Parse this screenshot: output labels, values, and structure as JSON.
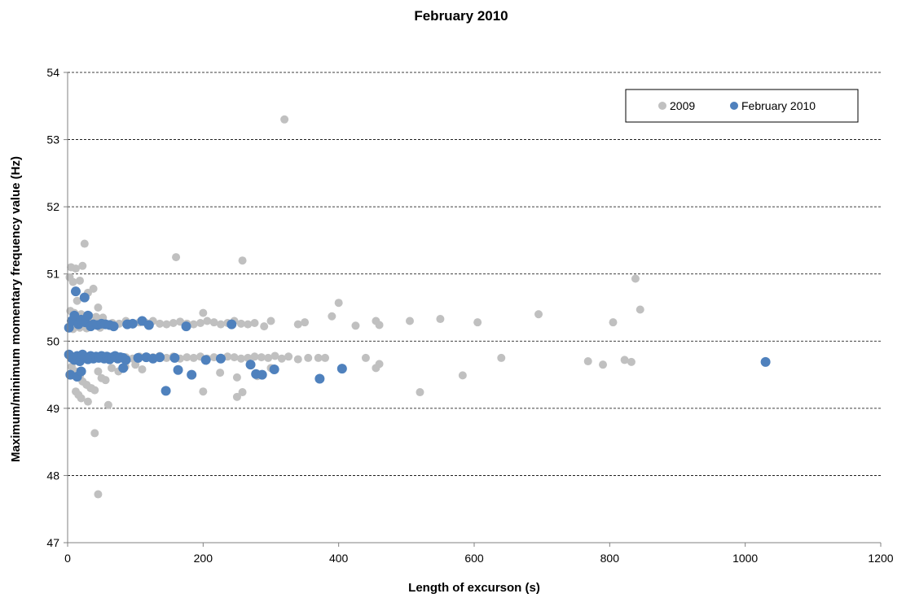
{
  "chart_data": {
    "type": "scatter",
    "title": "February 2010",
    "xlabel": "Length of excurson (s)",
    "ylabel": "Maximum/minimum momentary frequency value (Hz)",
    "xlim": [
      0,
      1200
    ],
    "ylim": [
      47,
      54
    ],
    "x_ticks": [
      "0",
      "200",
      "400",
      "600",
      "800",
      "1000",
      "1200"
    ],
    "y_ticks": [
      "47",
      "48",
      "49",
      "50",
      "51",
      "52",
      "53",
      "54"
    ],
    "grid": "horizontal-dashed",
    "legend_position": "top-right",
    "series": [
      {
        "name": "2009",
        "color": "#c0c0c0",
        "points": [
          [
            320,
            53.3
          ],
          [
            25,
            51.45
          ],
          [
            160,
            51.25
          ],
          [
            258,
            51.2
          ],
          [
            5,
            51.1
          ],
          [
            12,
            51.08
          ],
          [
            22,
            51.12
          ],
          [
            3,
            50.95
          ],
          [
            8,
            50.88
          ],
          [
            18,
            50.9
          ],
          [
            38,
            50.78
          ],
          [
            30,
            50.72
          ],
          [
            45,
            50.5
          ],
          [
            14,
            50.6
          ],
          [
            838,
            50.93
          ],
          [
            845,
            50.47
          ],
          [
            400,
            50.57
          ],
          [
            695,
            50.4
          ],
          [
            390,
            50.37
          ],
          [
            550,
            50.33
          ],
          [
            505,
            50.3
          ],
          [
            605,
            50.28
          ],
          [
            805,
            50.28
          ],
          [
            455,
            50.3
          ],
          [
            425,
            50.23
          ],
          [
            460,
            50.24
          ],
          [
            200,
            50.42
          ],
          [
            300,
            50.3
          ],
          [
            350,
            50.28
          ],
          [
            340,
            50.25
          ],
          [
            290,
            50.22
          ],
          [
            6,
            50.3
          ],
          [
            16,
            50.32
          ],
          [
            26,
            50.28
          ],
          [
            36,
            50.27
          ],
          [
            46,
            50.26
          ],
          [
            56,
            50.25
          ],
          [
            66,
            50.27
          ],
          [
            76,
            50.26
          ],
          [
            86,
            50.3
          ],
          [
            96,
            50.25
          ],
          [
            106,
            50.28
          ],
          [
            116,
            50.27
          ],
          [
            126,
            50.3
          ],
          [
            136,
            50.26
          ],
          [
            146,
            50.25
          ],
          [
            156,
            50.27
          ],
          [
            166,
            50.29
          ],
          [
            176,
            50.26
          ],
          [
            186,
            50.25
          ],
          [
            196,
            50.27
          ],
          [
            206,
            50.3
          ],
          [
            216,
            50.28
          ],
          [
            226,
            50.25
          ],
          [
            236,
            50.27
          ],
          [
            246,
            50.3
          ],
          [
            256,
            50.26
          ],
          [
            266,
            50.25
          ],
          [
            276,
            50.27
          ],
          [
            4,
            50.45
          ],
          [
            10,
            50.42
          ],
          [
            20,
            50.4
          ],
          [
            32,
            50.38
          ],
          [
            42,
            50.36
          ],
          [
            52,
            50.35
          ],
          [
            8,
            50.18
          ],
          [
            18,
            50.2
          ],
          [
            28,
            50.19
          ],
          [
            48,
            50.2
          ],
          [
            6,
            49.78
          ],
          [
            16,
            49.76
          ],
          [
            26,
            49.77
          ],
          [
            36,
            49.75
          ],
          [
            46,
            49.76
          ],
          [
            56,
            49.78
          ],
          [
            66,
            49.75
          ],
          [
            76,
            49.77
          ],
          [
            86,
            49.76
          ],
          [
            96,
            49.74
          ],
          [
            106,
            49.77
          ],
          [
            116,
            49.75
          ],
          [
            126,
            49.76
          ],
          [
            136,
            49.78
          ],
          [
            146,
            49.75
          ],
          [
            156,
            49.77
          ],
          [
            166,
            49.74
          ],
          [
            176,
            49.76
          ],
          [
            186,
            49.75
          ],
          [
            196,
            49.77
          ],
          [
            206,
            49.74
          ],
          [
            216,
            49.76
          ],
          [
            226,
            49.75
          ],
          [
            236,
            49.77
          ],
          [
            246,
            49.76
          ],
          [
            256,
            49.74
          ],
          [
            266,
            49.75
          ],
          [
            276,
            49.77
          ],
          [
            286,
            49.76
          ],
          [
            296,
            49.75
          ],
          [
            306,
            49.78
          ],
          [
            316,
            49.74
          ],
          [
            326,
            49.77
          ],
          [
            340,
            49.73
          ],
          [
            355,
            49.75
          ],
          [
            370,
            49.75
          ],
          [
            380,
            49.75
          ],
          [
            440,
            49.75
          ],
          [
            460,
            49.66
          ],
          [
            455,
            49.6
          ],
          [
            640,
            49.75
          ],
          [
            768,
            49.7
          ],
          [
            790,
            49.65
          ],
          [
            822,
            49.72
          ],
          [
            832,
            49.69
          ],
          [
            583,
            49.49
          ],
          [
            520,
            49.24
          ],
          [
            300,
            49.6
          ],
          [
            280,
            49.48
          ],
          [
            250,
            49.46
          ],
          [
            225,
            49.53
          ],
          [
            250,
            49.17
          ],
          [
            258,
            49.24
          ],
          [
            200,
            49.25
          ],
          [
            6,
            49.62
          ],
          [
            12,
            49.55
          ],
          [
            18,
            49.48
          ],
          [
            22,
            49.4
          ],
          [
            28,
            49.35
          ],
          [
            34,
            49.3
          ],
          [
            40,
            49.27
          ],
          [
            12,
            49.25
          ],
          [
            16,
            49.2
          ],
          [
            20,
            49.15
          ],
          [
            30,
            49.1
          ],
          [
            50,
            49.45
          ],
          [
            56,
            49.42
          ],
          [
            60,
            49.05
          ],
          [
            35,
            49.3
          ],
          [
            45,
            49.55
          ],
          [
            65,
            49.6
          ],
          [
            75,
            49.55
          ],
          [
            85,
            49.62
          ],
          [
            110,
            49.58
          ],
          [
            100,
            49.65
          ],
          [
            40,
            48.63
          ],
          [
            45,
            47.72
          ]
        ]
      },
      {
        "name": "February 2010",
        "color": "#4f81bd",
        "points": [
          [
            12,
            50.74
          ],
          [
            25,
            50.65
          ],
          [
            2,
            50.2
          ],
          [
            6,
            50.3
          ],
          [
            10,
            50.38
          ],
          [
            16,
            50.25
          ],
          [
            20,
            50.32
          ],
          [
            26,
            50.28
          ],
          [
            30,
            50.38
          ],
          [
            34,
            50.22
          ],
          [
            38,
            50.25
          ],
          [
            44,
            50.24
          ],
          [
            50,
            50.26
          ],
          [
            56,
            50.25
          ],
          [
            62,
            50.24
          ],
          [
            68,
            50.22
          ],
          [
            88,
            50.25
          ],
          [
            96,
            50.26
          ],
          [
            110,
            50.3
          ],
          [
            120,
            50.24
          ],
          [
            175,
            50.22
          ],
          [
            242,
            50.25
          ],
          [
            2,
            49.8
          ],
          [
            6,
            49.75
          ],
          [
            10,
            49.72
          ],
          [
            14,
            49.78
          ],
          [
            18,
            49.7
          ],
          [
            22,
            49.8
          ],
          [
            26,
            49.76
          ],
          [
            30,
            49.73
          ],
          [
            34,
            49.78
          ],
          [
            38,
            49.74
          ],
          [
            42,
            49.77
          ],
          [
            46,
            49.75
          ],
          [
            50,
            49.78
          ],
          [
            54,
            49.74
          ],
          [
            58,
            49.77
          ],
          [
            62,
            49.73
          ],
          [
            66,
            49.76
          ],
          [
            70,
            49.78
          ],
          [
            74,
            49.74
          ],
          [
            78,
            49.76
          ],
          [
            82,
            49.75
          ],
          [
            86,
            49.72
          ],
          [
            104,
            49.75
          ],
          [
            116,
            49.76
          ],
          [
            126,
            49.74
          ],
          [
            136,
            49.76
          ],
          [
            158,
            49.75
          ],
          [
            204,
            49.72
          ],
          [
            226,
            49.74
          ],
          [
            270,
            49.65
          ],
          [
            4,
            49.5
          ],
          [
            14,
            49.47
          ],
          [
            20,
            49.55
          ],
          [
            82,
            49.6
          ],
          [
            145,
            49.26
          ],
          [
            163,
            49.57
          ],
          [
            183,
            49.5
          ],
          [
            278,
            49.51
          ],
          [
            287,
            49.5
          ],
          [
            305,
            49.58
          ],
          [
            372,
            49.44
          ],
          [
            405,
            49.59
          ],
          [
            1030,
            49.69
          ]
        ]
      }
    ]
  }
}
